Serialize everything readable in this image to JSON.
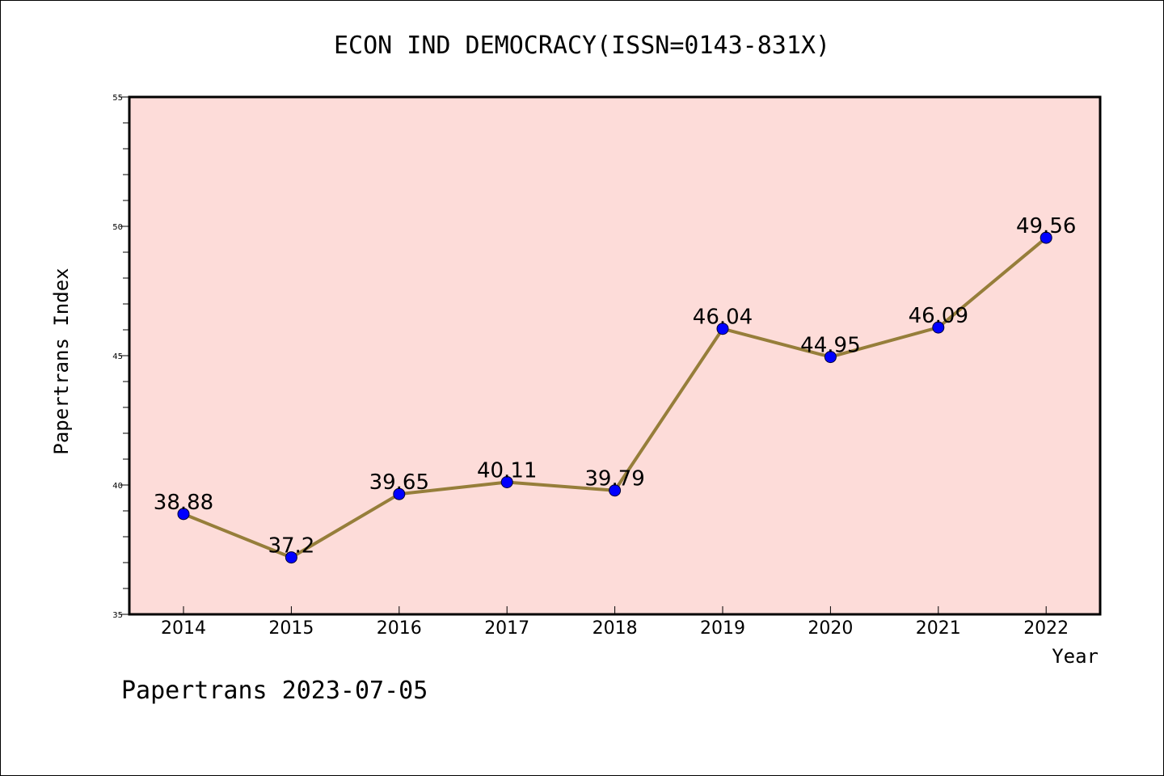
{
  "chart_data": {
    "type": "line",
    "title": "ECON IND DEMOCRACY(ISSN=0143-831X)",
    "xlabel": "Year",
    "ylabel": "Papertrans Index",
    "categories": [
      "2014",
      "2015",
      "2016",
      "2017",
      "2018",
      "2019",
      "2020",
      "2021",
      "2022"
    ],
    "series": [
      {
        "values": [
          38.88,
          37.2,
          39.65,
          40.11,
          39.79,
          46.04,
          44.95,
          46.09,
          49.56
        ],
        "labels": [
          "38.88",
          "37.2",
          "39.65",
          "40.11",
          "39.79",
          "46.04",
          "44.95",
          "46.09",
          "49.56"
        ],
        "line_color": "#967e3a",
        "marker_color": "#0000ff"
      }
    ],
    "ylim": [
      35,
      55
    ],
    "yticks": [
      "35",
      "40",
      "45",
      "50",
      "55"
    ],
    "plot_background": "#fddcd9",
    "grid": false,
    "legend": "none"
  },
  "footer": "Papertrans 2023-07-05"
}
